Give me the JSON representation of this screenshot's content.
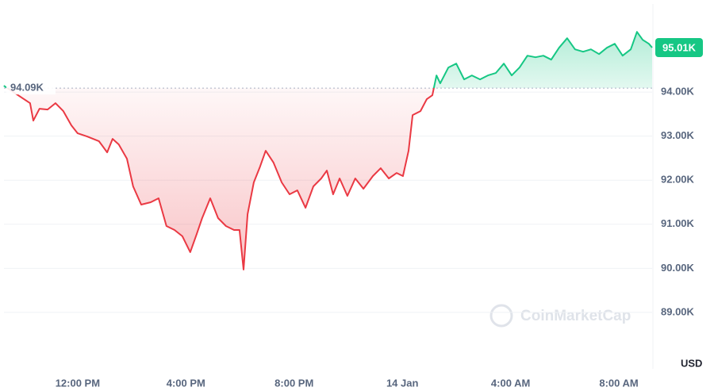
{
  "chart_data": {
    "type": "line",
    "x": [
      9.27,
      10.24,
      10.36,
      10.59,
      10.89,
      11.18,
      11.47,
      11.77,
      12,
      12.35,
      12.79,
      13.09,
      13.29,
      13.52,
      13.82,
      14.05,
      14.35,
      14.7,
      14.99,
      15.28,
      15.58,
      15.87,
      16.16,
      16.4,
      16.6,
      16.9,
      17.19,
      17.48,
      17.78,
      17.98,
      18.13,
      18.28,
      18.51,
      18.74,
      18.95,
      19.24,
      19.54,
      19.83,
      20.12,
      20.42,
      20.71,
      21,
      21.21,
      21.44,
      21.68,
      21.97,
      22.26,
      22.56,
      22.91,
      23.2,
      23.5,
      23.79,
      24.02,
      24.23,
      24.38,
      24.67,
      24.9,
      25.11,
      25.26,
      25.4,
      25.7,
      25.99,
      26.28,
      26.57,
      26.87,
      27.16,
      27.45,
      27.75,
      28.04,
      28.33,
      28.62,
      28.92,
      29.21,
      29.5,
      29.79,
      30.09,
      30.38,
      30.68,
      30.97,
      31.27,
      31.56,
      31.85,
      32.14,
      32.44,
      32.67,
      32.88,
      33.11,
      33.23
    ],
    "values": [
      94144,
      93748,
      93353,
      93622,
      93604,
      93748,
      93568,
      93245,
      93065,
      92993,
      92885,
      92633,
      92939,
      92813,
      92489,
      91860,
      91446,
      91500,
      91590,
      90960,
      90870,
      90727,
      90367,
      90781,
      91140,
      91590,
      91140,
      90960,
      90870,
      90870,
      89971,
      91230,
      91950,
      92309,
      92669,
      92399,
      91950,
      91680,
      91770,
      91374,
      91860,
      92040,
      92219,
      91680,
      92040,
      91644,
      92040,
      91806,
      92094,
      92273,
      92040,
      92165,
      92094,
      92669,
      93478,
      93568,
      93838,
      93928,
      94378,
      94198,
      94558,
      94647,
      94288,
      94378,
      94288,
      94378,
      94432,
      94647,
      94378,
      94558,
      94827,
      94791,
      94827,
      94737,
      95007,
      95223,
      94971,
      94917,
      94971,
      94863,
      95007,
      95097,
      94827,
      94971,
      95367,
      95187,
      95097,
      95010
    ],
    "last_label": "95.01K",
    "baseline": {
      "value": 94090,
      "label": "94.09K"
    },
    "up_color": "#16c784",
    "down_color": "#ea3943",
    "xlim": [
      9.13,
      33.23
    ],
    "xticks": [
      {
        "value": 12,
        "label": "12:00 PM"
      },
      {
        "value": 16,
        "label": "4:00 PM"
      },
      {
        "value": 20,
        "label": "8:00 PM"
      },
      {
        "value": 24,
        "label": "14 Jan"
      },
      {
        "value": 28,
        "label": "4:00 AM"
      },
      {
        "value": 32,
        "label": "8:00 AM"
      }
    ],
    "ylim": [
      87720,
      96000
    ],
    "yticks": [
      {
        "value": 89000,
        "label": "89.00K"
      },
      {
        "value": 90000,
        "label": "90.00K"
      },
      {
        "value": 91000,
        "label": "91.00K"
      },
      {
        "value": 92000,
        "label": "92.00K"
      },
      {
        "value": 93000,
        "label": "93.00K"
      },
      {
        "value": 94000,
        "label": "94.00K"
      }
    ],
    "y_label": "USD",
    "watermark": "CoinMarketCap",
    "grid": true
  }
}
